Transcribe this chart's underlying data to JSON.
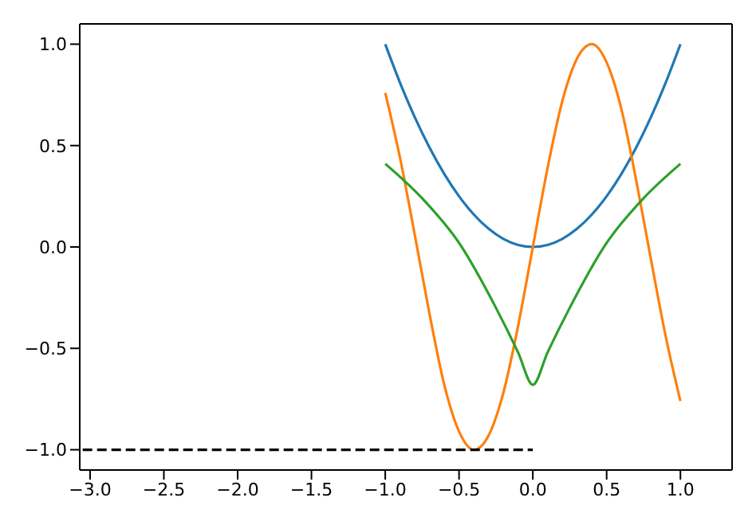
{
  "chart_data": {
    "type": "line",
    "xlim": [
      -3.07,
      1.35
    ],
    "ylim": [
      -1.1,
      1.1
    ],
    "xticks": [
      {
        "value": -3,
        "label": "−3.0"
      },
      {
        "value": -2.5,
        "label": "−2.5"
      },
      {
        "value": -2,
        "label": "−2.0"
      },
      {
        "value": -1.5,
        "label": "−1.5"
      },
      {
        "value": -1,
        "label": "−1.0"
      },
      {
        "value": -0.5,
        "label": "−0.5"
      },
      {
        "value": 0,
        "label": "0.0"
      },
      {
        "value": 0.5,
        "label": "0.5"
      },
      {
        "value": 1,
        "label": "1.0"
      }
    ],
    "yticks": [
      {
        "value": -1,
        "label": "−1.0"
      },
      {
        "value": -0.5,
        "label": "−0.5"
      },
      {
        "value": 0,
        "label": "0.0"
      },
      {
        "value": 0.5,
        "label": "0.5"
      },
      {
        "value": 1,
        "label": "1.0"
      }
    ],
    "marker": "none",
    "series": [
      {
        "color": "#1f77b4",
        "line_style": "solid",
        "x": [
          -1,
          -0.9,
          -0.8,
          -0.7,
          -0.6,
          -0.5,
          -0.4,
          -0.3,
          -0.2,
          -0.1,
          0,
          0.1,
          0.2,
          0.3,
          0.4,
          0.5,
          0.6,
          0.7,
          0.8,
          0.9,
          1
        ],
        "values": [
          1,
          0.81,
          0.64,
          0.49,
          0.36,
          0.25,
          0.16,
          0.09,
          0.04,
          0.01,
          0,
          0.01,
          0.04,
          0.09,
          0.16,
          0.25,
          0.36,
          0.49,
          0.64,
          0.81,
          1
        ]
      },
      {
        "color": "#ff7f0e",
        "line_style": "solid",
        "x": [
          -1,
          -0.9,
          -0.8,
          -0.7,
          -0.6,
          -0.5,
          -0.4,
          -0.3,
          -0.2,
          -0.1,
          0,
          0.1,
          0.2,
          0.3,
          0.4,
          0.5,
          0.6,
          0.7,
          0.8,
          0.9,
          1
        ],
        "values": [
          0.76,
          0.44,
          0.06,
          -0.33,
          -0.68,
          -0.91,
          -1,
          -0.93,
          -0.72,
          -0.39,
          0,
          0.39,
          0.72,
          0.93,
          1,
          0.91,
          0.68,
          0.33,
          -0.06,
          -0.44,
          -0.76
        ]
      },
      {
        "color": "#2ca02c",
        "line_style": "solid",
        "x": [
          -1,
          -0.75,
          -0.5,
          -0.25,
          -0.1,
          0,
          0.1,
          0.25,
          0.5,
          0.75,
          1
        ],
        "values": [
          0.41,
          0.24,
          0.02,
          -0.3,
          -0.52,
          -0.68,
          -0.52,
          -0.3,
          0.02,
          0.24,
          0.41
        ]
      },
      {
        "color": "#000000",
        "line_style": "dashed",
        "x": [
          -3.05,
          0
        ],
        "values": [
          -1,
          -1
        ]
      }
    ]
  }
}
